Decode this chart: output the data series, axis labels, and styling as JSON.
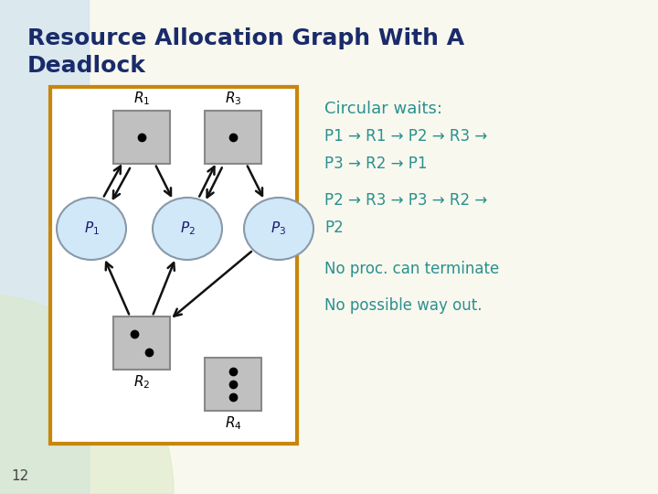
{
  "title_line1": "Resource Allocation Graph With A",
  "title_line2": "Deadlock",
  "title_color": "#1a2b6b",
  "title_fontsize": 18,
  "bg_color": "#f8f8ee",
  "teal_color": "#2a9090",
  "slide_number": "12",
  "box_color": "#c0c0c0",
  "box_edge_color": "#888888",
  "ellipse_color": "#d0e8f8",
  "ellipse_edge_color": "#8899aa",
  "border_color": "#c8860a",
  "arrow_color": "#111111",
  "blue_bg_color": "#c0d8f0",
  "white": "#ffffff"
}
